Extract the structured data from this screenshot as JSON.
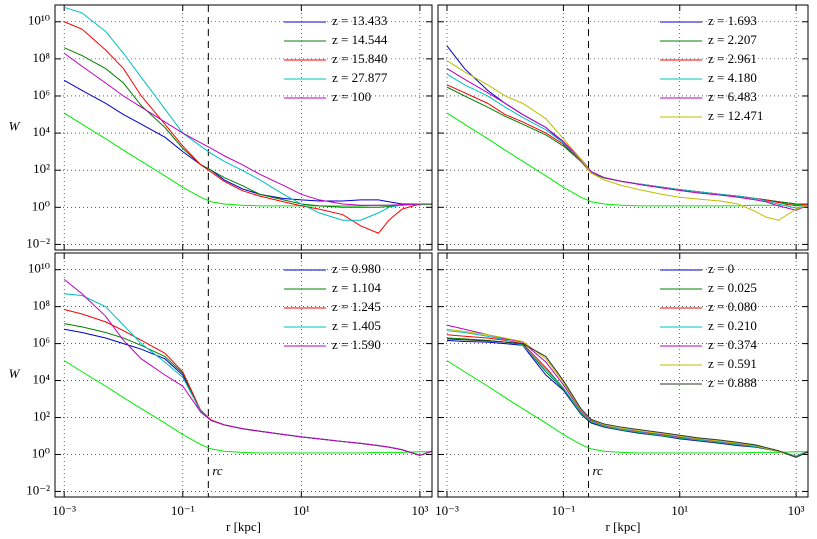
{
  "chart_data": [
    {
      "type": "line",
      "ylabel": "W",
      "x": [
        0.001,
        0.002,
        0.005,
        0.01,
        0.02,
        0.05,
        0.1,
        0.2,
        0.3,
        0.5,
        1,
        2,
        5,
        10,
        20,
        50,
        100,
        200,
        300,
        500,
        1000,
        1600
      ],
      "xlim": [
        0.0007,
        1600
      ],
      "ylim": [
        0.005,
        80000000000
      ],
      "xscale": "log",
      "yscale": "log",
      "grid": true,
      "legend": "upper right",
      "vline": 0.27,
      "xticks": [
        0.001,
        0.1,
        10,
        1000
      ],
      "yticks": [
        {
          "value": 0.01,
          "label": "10⁻²"
        },
        {
          "value": 1,
          "label": "10⁰"
        },
        {
          "value": 100,
          "label": "10²"
        },
        {
          "value": 10000,
          "label": "10⁴"
        },
        {
          "value": 1000000,
          "label": "10⁶"
        },
        {
          "value": 100000000,
          "label": "10⁸"
        },
        {
          "value": 10000000000,
          "label": "10¹⁰"
        }
      ],
      "series": [
        {
          "color": "#00ee00",
          "values": [
            120000,
            30000,
            5000,
            1200,
            300,
            50,
            12,
            3.5,
            2,
            1.5,
            1.3,
            1.2,
            1.2,
            1.2,
            1.2,
            1.2,
            1.2,
            1.3,
            1.3,
            1.3,
            1.4,
            1.4
          ]
        },
        {
          "name": "z = 13.433",
          "color": "#0000cc",
          "values": [
            7000000,
            2000000,
            400000,
            100000,
            30000,
            6000,
            1000,
            200,
            100,
            30,
            10,
            5,
            3,
            2.5,
            2.2,
            2.2,
            2.5,
            2.5,
            2,
            1.5,
            1.5,
            1.5
          ]
        },
        {
          "name": "z = 14.544",
          "color": "#008000",
          "values": [
            400000000,
            150000000,
            30000000,
            5000000,
            300000,
            20000,
            1500,
            200,
            100,
            40,
            15,
            5,
            2.5,
            1.5,
            1.2,
            1,
            1,
            1,
            1.1,
            1.3,
            1.5,
            1.5
          ]
        },
        {
          "name": "z = 15.840",
          "color": "#ff0000",
          "values": [
            10000000000,
            4000000000,
            300000000,
            30000000,
            1000000,
            30000,
            2000,
            200,
            80,
            25,
            8,
            4,
            2,
            1.2,
            0.8,
            0.4,
            0.1,
            0.04,
            0.2,
            0.8,
            1.5,
            1.5
          ]
        },
        {
          "name": "z = 27.877",
          "color": "#00bfbf",
          "values": [
            60000000000,
            30000000000,
            3000000000,
            200000000,
            10000000,
            200000,
            10000,
            2000,
            800,
            300,
            100,
            30,
            5,
            1.5,
            0.5,
            0.2,
            0.2,
            0.5,
            1,
            1.3,
            1.5,
            1.5
          ]
        },
        {
          "name": "z = 100",
          "color": "#bf00bf",
          "values": [
            200000000,
            40000000,
            5000000,
            1000000,
            250000,
            40000,
            10000,
            3000,
            1500,
            600,
            200,
            60,
            15,
            5,
            2.5,
            1.5,
            1.3,
            1.3,
            1.3,
            1.4,
            1.5,
            1.5
          ]
        }
      ]
    },
    {
      "type": "line",
      "x": [
        0.001,
        0.002,
        0.005,
        0.01,
        0.02,
        0.05,
        0.1,
        0.2,
        0.3,
        0.5,
        1,
        2,
        5,
        10,
        20,
        50,
        100,
        200,
        300,
        500,
        1000,
        1600
      ],
      "xlim": [
        0.0007,
        1600
      ],
      "ylim": [
        0.005,
        80000000000
      ],
      "xscale": "log",
      "yscale": "log",
      "grid": true,
      "legend": "upper right",
      "vline": 0.27,
      "xticks": [
        0.001,
        0.1,
        10,
        1000
      ],
      "yticks": [
        0.01,
        1,
        100,
        10000,
        1000000,
        100000000,
        10000000000
      ],
      "series": [
        {
          "color": "#00ee00",
          "values": [
            120000,
            30000,
            5000,
            1200,
            300,
            50,
            12,
            3.5,
            2,
            1.5,
            1.3,
            1.2,
            1.2,
            1.2,
            1.2,
            1.2,
            1.2,
            1.3,
            1.3,
            1.3,
            1.4,
            1.4
          ]
        },
        {
          "name": "z = 1.693",
          "color": "#0000cc",
          "values": [
            500000000,
            30000000,
            2000000,
            400000,
            100000,
            20000,
            3000,
            300,
            80,
            40,
            25,
            18,
            12,
            9,
            7,
            5,
            4,
            3,
            2.5,
            2,
            1.5,
            1.5
          ]
        },
        {
          "name": "z = 2.207",
          "color": "#008000",
          "values": [
            3000000,
            1000000,
            250000,
            80000,
            30000,
            8000,
            2000,
            300,
            70,
            38,
            25,
            18,
            12,
            9,
            7,
            5,
            4,
            3,
            2.5,
            2,
            1.5,
            1.5
          ]
        },
        {
          "name": "z = 2.961",
          "color": "#ff0000",
          "values": [
            4000000,
            1500000,
            400000,
            100000,
            40000,
            10000,
            2500,
            300,
            75,
            40,
            25,
            18,
            12,
            9,
            7,
            5,
            4,
            3,
            2.5,
            1.8,
            1.2,
            1.5
          ]
        },
        {
          "name": "z = 4.180",
          "color": "#00bfbf",
          "values": [
            15000000,
            4000000,
            1000000,
            250000,
            70000,
            15000,
            3000,
            350,
            80,
            40,
            25,
            18,
            12,
            9,
            7,
            5,
            4,
            3,
            2.2,
            1.5,
            0.9,
            1.4
          ]
        },
        {
          "name": "z = 6.483",
          "color": "#bf00bf",
          "values": [
            30000000,
            8000000,
            1500000,
            400000,
            100000,
            20000,
            3500,
            400,
            85,
            40,
            25,
            17,
            11,
            8,
            6,
            4.5,
            3.5,
            2.5,
            2,
            1.2,
            0.7,
            1.3
          ]
        },
        {
          "name": "z = 12.471",
          "color": "#bfbf00",
          "values": [
            80000000,
            20000000,
            4000000,
            1000000,
            400000,
            60000,
            5000,
            400,
            70,
            30,
            15,
            9,
            5,
            3.5,
            2.8,
            2.2,
            1.5,
            0.6,
            0.3,
            0.2,
            0.8,
            1.3
          ]
        }
      ]
    },
    {
      "type": "line",
      "ylabel": "W",
      "xlabel": "r [kpc]",
      "annotation": "rc",
      "x": [
        0.001,
        0.002,
        0.005,
        0.01,
        0.02,
        0.05,
        0.1,
        0.2,
        0.3,
        0.5,
        1,
        2,
        5,
        10,
        20,
        50,
        100,
        200,
        300,
        500,
        1000,
        1600
      ],
      "xlim": [
        0.0007,
        1600
      ],
      "ylim": [
        0.005,
        80000000000
      ],
      "xscale": "log",
      "yscale": "log",
      "grid": true,
      "legend": "upper right",
      "vline": 0.27,
      "xticks": [
        {
          "value": 0.001,
          "label": "10⁻³"
        },
        {
          "value": 0.1,
          "label": "10⁻¹"
        },
        {
          "value": 10,
          "label": "10¹"
        },
        {
          "value": 1000,
          "label": "10³"
        }
      ],
      "yticks": [
        {
          "value": 0.01,
          "label": "10⁻²"
        },
        {
          "value": 1,
          "label": "10⁰"
        },
        {
          "value": 100,
          "label": "10²"
        },
        {
          "value": 10000,
          "label": "10⁴"
        },
        {
          "value": 1000000,
          "label": "10⁶"
        },
        {
          "value": 100000000,
          "label": "10⁸"
        },
        {
          "value": 10000000000,
          "label": "10¹⁰"
        }
      ],
      "series": [
        {
          "color": "#00ee00",
          "values": [
            120000,
            30000,
            5000,
            1200,
            300,
            50,
            12,
            3.5,
            2,
            1.5,
            1.3,
            1.2,
            1.2,
            1.2,
            1.2,
            1.2,
            1.2,
            1.3,
            1.3,
            1.3,
            1.4,
            1.4
          ]
        },
        {
          "name": "z = 0.980",
          "color": "#0000cc",
          "values": [
            6000000,
            4000000,
            2000000,
            1000000,
            500000,
            150000,
            20000,
            200,
            70,
            40,
            25,
            18,
            12,
            9,
            7,
            5,
            4,
            3,
            2.5,
            1.8,
            0.9,
            1.5
          ]
        },
        {
          "name": "z = 1.104",
          "color": "#008000",
          "values": [
            12000000,
            8000000,
            4000000,
            2000000,
            800000,
            200000,
            25000,
            220,
            70,
            40,
            25,
            18,
            12,
            9,
            7,
            5,
            4,
            3,
            2.5,
            1.8,
            0.9,
            1.5
          ]
        },
        {
          "name": "z = 1.245",
          "color": "#ff0000",
          "values": [
            70000000,
            40000000,
            15000000,
            5000000,
            1500000,
            300000,
            30000,
            250,
            75,
            40,
            25,
            18,
            12,
            9,
            7,
            5,
            4,
            3,
            2.5,
            1.8,
            0.9,
            1.5
          ]
        },
        {
          "name": "z = 1.405",
          "color": "#00bfbf",
          "values": [
            500000000,
            400000000,
            100000000,
            10000000,
            1000000,
            100000,
            15000,
            220,
            70,
            40,
            25,
            18,
            12,
            9,
            7,
            5,
            4,
            3,
            2.5,
            1.8,
            0.9,
            1.5
          ]
        },
        {
          "name": "z = 1.590",
          "color": "#bf00bf",
          "values": [
            3000000000,
            500000000,
            30000000,
            1500000,
            150000,
            20000,
            5000,
            200,
            70,
            40,
            25,
            18,
            12,
            9,
            7,
            5,
            4,
            3,
            2.5,
            1.8,
            0.9,
            1.5
          ]
        }
      ]
    },
    {
      "type": "line",
      "xlabel": "r [kpc]",
      "annotation": "rc",
      "x": [
        0.001,
        0.002,
        0.005,
        0.01,
        0.02,
        0.05,
        0.1,
        0.2,
        0.3,
        0.5,
        1,
        2,
        5,
        10,
        20,
        50,
        100,
        200,
        300,
        500,
        1000,
        1600
      ],
      "xlim": [
        0.0007,
        1600
      ],
      "ylim": [
        0.005,
        80000000000
      ],
      "xscale": "log",
      "yscale": "log",
      "grid": true,
      "legend": "upper right",
      "vline": 0.27,
      "xticks": [
        {
          "value": 0.001,
          "label": "10⁻³"
        },
        {
          "value": 0.1,
          "label": "10⁻¹"
        },
        {
          "value": 10,
          "label": "10¹"
        },
        {
          "value": 1000,
          "label": "10³"
        }
      ],
      "yticks": [
        0.01,
        1,
        100,
        10000,
        1000000,
        100000000,
        10000000000
      ],
      "series": [
        {
          "color": "#00ee00",
          "values": [
            120000,
            30000,
            5000,
            1200,
            300,
            50,
            12,
            3.5,
            2,
            1.5,
            1.3,
            1.2,
            1.2,
            1.2,
            1.2,
            1.2,
            1.2,
            1.3,
            1.3,
            1.3,
            1.4,
            1.4
          ]
        },
        {
          "name": "z = 0",
          "color": "#0000cc",
          "values": [
            1500000,
            1300000,
            1200000,
            1000000,
            800000,
            20000,
            3000,
            150,
            50,
            30,
            20,
            14,
            10,
            7,
            5.5,
            4,
            3,
            2.5,
            2,
            1.5,
            0.8,
            1.5
          ]
        },
        {
          "name": "z = 0.025",
          "color": "#008000",
          "values": [
            2000000,
            1800000,
            1500000,
            1200000,
            900000,
            30000,
            3500,
            160,
            55,
            32,
            21,
            15,
            10,
            7.5,
            6,
            4.3,
            3.2,
            2.6,
            2,
            1.5,
            0.8,
            1.5
          ]
        },
        {
          "name": "z = 0.080",
          "color": "#ff0000",
          "values": [
            3000000,
            2500000,
            2000000,
            1500000,
            1000000,
            50000,
            4000,
            180,
            60,
            34,
            22,
            16,
            11,
            8,
            6.2,
            4.5,
            3.4,
            2.7,
            2.1,
            1.5,
            0.8,
            1.5
          ]
        },
        {
          "name": "z = 0.210",
          "color": "#00bfbf",
          "values": [
            5000000,
            4000000,
            2500000,
            1600000,
            800000,
            40000,
            4000,
            180,
            60,
            34,
            22,
            16,
            11,
            8,
            6.2,
            4.5,
            3.4,
            2.7,
            2.1,
            1.5,
            0.8,
            1.5
          ]
        },
        {
          "name": "z = 0.374",
          "color": "#bf00bf",
          "values": [
            10000000,
            6000000,
            3000000,
            1800000,
            1200000,
            100000,
            6000,
            220,
            70,
            38,
            25,
            18,
            12,
            9,
            7,
            5,
            3.8,
            3,
            2.2,
            1.5,
            0.7,
            1.4
          ]
        },
        {
          "name": "z = 0.591",
          "color": "#bfbf00",
          "values": [
            6000000,
            4500000,
            3000000,
            2000000,
            1300000,
            150000,
            8000,
            250,
            75,
            40,
            26,
            19,
            13,
            9.5,
            7.2,
            5.2,
            4,
            3,
            2.2,
            1.5,
            0.7,
            1.4
          ]
        },
        {
          "name": "z = 0.888",
          "color": "#2a3a2a",
          "values": [
            1800000,
            1600000,
            1400000,
            1200000,
            1000000,
            200000,
            10000,
            300,
            80,
            45,
            30,
            22,
            15,
            11,
            8,
            6,
            4.5,
            3.3,
            2.4,
            1.6,
            0.7,
            1.4
          ]
        }
      ]
    }
  ]
}
